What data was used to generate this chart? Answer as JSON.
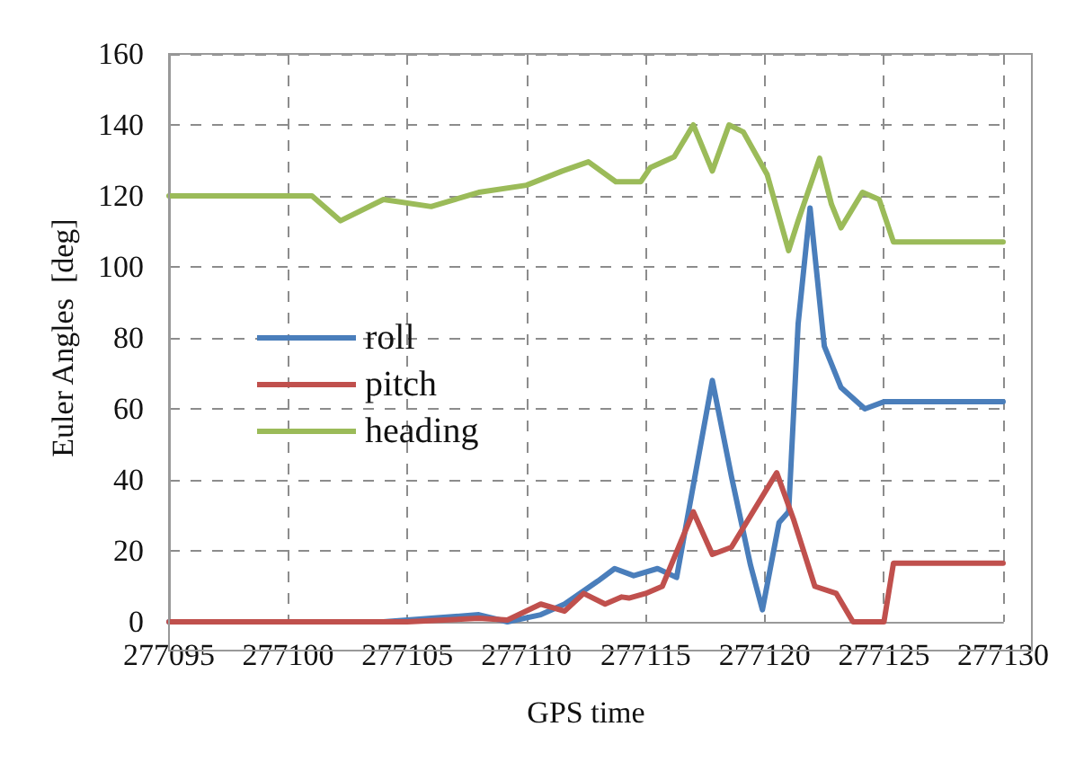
{
  "chart_data": {
    "type": "line",
    "xlabel": "GPS time",
    "ylabel": "Euler Angles  [deg]",
    "xlim": [
      277095,
      277130
    ],
    "xticks": [
      277095,
      277100,
      277105,
      277110,
      277115,
      277120,
      277125,
      277130
    ],
    "ylim": [
      0,
      160
    ],
    "yticks": [
      0,
      20,
      40,
      60,
      80,
      100,
      120,
      140,
      160
    ],
    "grid": true,
    "legend": "left",
    "marker": "none",
    "line_style": "solid",
    "series": [
      {
        "name": "roll",
        "color": "#4a7ebb",
        "x": [
          277095,
          277100,
          277104,
          277106,
          277108,
          277109.2,
          277110.6,
          277111.6,
          277113.0,
          277113.7,
          277114.5,
          277115.5,
          277116.3,
          277117.8,
          277118.6,
          277119.4,
          277119.9,
          277120.6,
          277121.0,
          277121.4,
          277121.9,
          277122.4,
          277122.5,
          277123.2,
          277124.2,
          277125.0,
          277130
        ],
        "values": [
          0,
          0,
          0,
          1,
          2,
          0,
          2,
          5,
          11.5,
          15,
          13,
          15,
          12.5,
          68,
          41,
          16,
          3.4,
          28,
          31,
          84,
          116.6,
          84,
          77.6,
          66,
          60,
          62,
          62
        ]
      },
      {
        "name": "pitch",
        "color": "#c0504d",
        "x": [
          277095,
          277100,
          277105,
          277108,
          277109.2,
          277110.6,
          277111.6,
          277112.4,
          277113.3,
          277114.0,
          277114.3,
          277115.0,
          277115.7,
          277117.0,
          277117.8,
          277118.6,
          277120.5,
          277121.2,
          277122.1,
          277123.0,
          277123.7,
          277125.0,
          277125.4,
          277130
        ],
        "values": [
          0,
          0,
          0,
          1,
          0.5,
          5,
          3,
          8,
          5,
          7,
          6.7,
          8,
          10,
          31,
          19,
          21,
          42,
          29,
          10,
          8,
          0,
          0,
          16.5,
          16.5
        ]
      },
      {
        "name": "heading",
        "color": "#9bbb59",
        "x": [
          277095,
          277101,
          277102.2,
          277104,
          277106,
          277108,
          277110,
          277111.5,
          277112.6,
          277113.75,
          277114.8,
          277115.2,
          277116.2,
          277117.0,
          277117.8,
          277118.5,
          277119.1,
          277120.1,
          277121.0,
          277121.4,
          277122.3,
          277122.8,
          277123.2,
          277124.1,
          277124.8,
          277125.4,
          277130
        ],
        "values": [
          120,
          120,
          113,
          119,
          117,
          121,
          123,
          127,
          129.6,
          124,
          124,
          128,
          131,
          140,
          127,
          140,
          138,
          126,
          104.6,
          113,
          130.6,
          117.6,
          111,
          121,
          119,
          107,
          107
        ]
      }
    ]
  }
}
